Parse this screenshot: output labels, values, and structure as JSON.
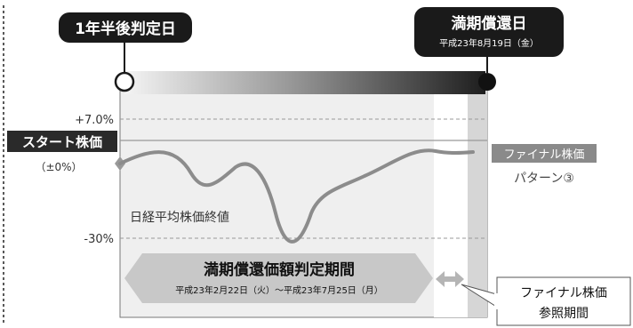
{
  "callouts": {
    "start_judgment": "1年半後判定日",
    "maturity_title": "満期償還日",
    "maturity_date": "平成23年8月19日（金）"
  },
  "levels": {
    "upper": "+7.0%",
    "lower": "-30%"
  },
  "start_price": {
    "label": "スタート株価",
    "sub": "（±0%）"
  },
  "final_price_label": "ファイナル株価",
  "pattern_label": "パターン③",
  "series_label": "日経平均株価終値",
  "judgment_period": {
    "title": "満期償還価額判定期間",
    "dates": "平成23年2月22日（火）～平成23年7月25日（月）"
  },
  "reference_period": {
    "line1": "ファイナル株価",
    "line2": "参照期間"
  },
  "colors": {
    "dark": "#1a1a1a",
    "gray_box": "#888888",
    "panel": "#efefef",
    "band": "#c8c8c8",
    "series": "#8c8c8c"
  },
  "icons": {
    "start_marker": "open-circle",
    "end_marker": "filled-circle",
    "reference_arrow": "double-arrow"
  }
}
